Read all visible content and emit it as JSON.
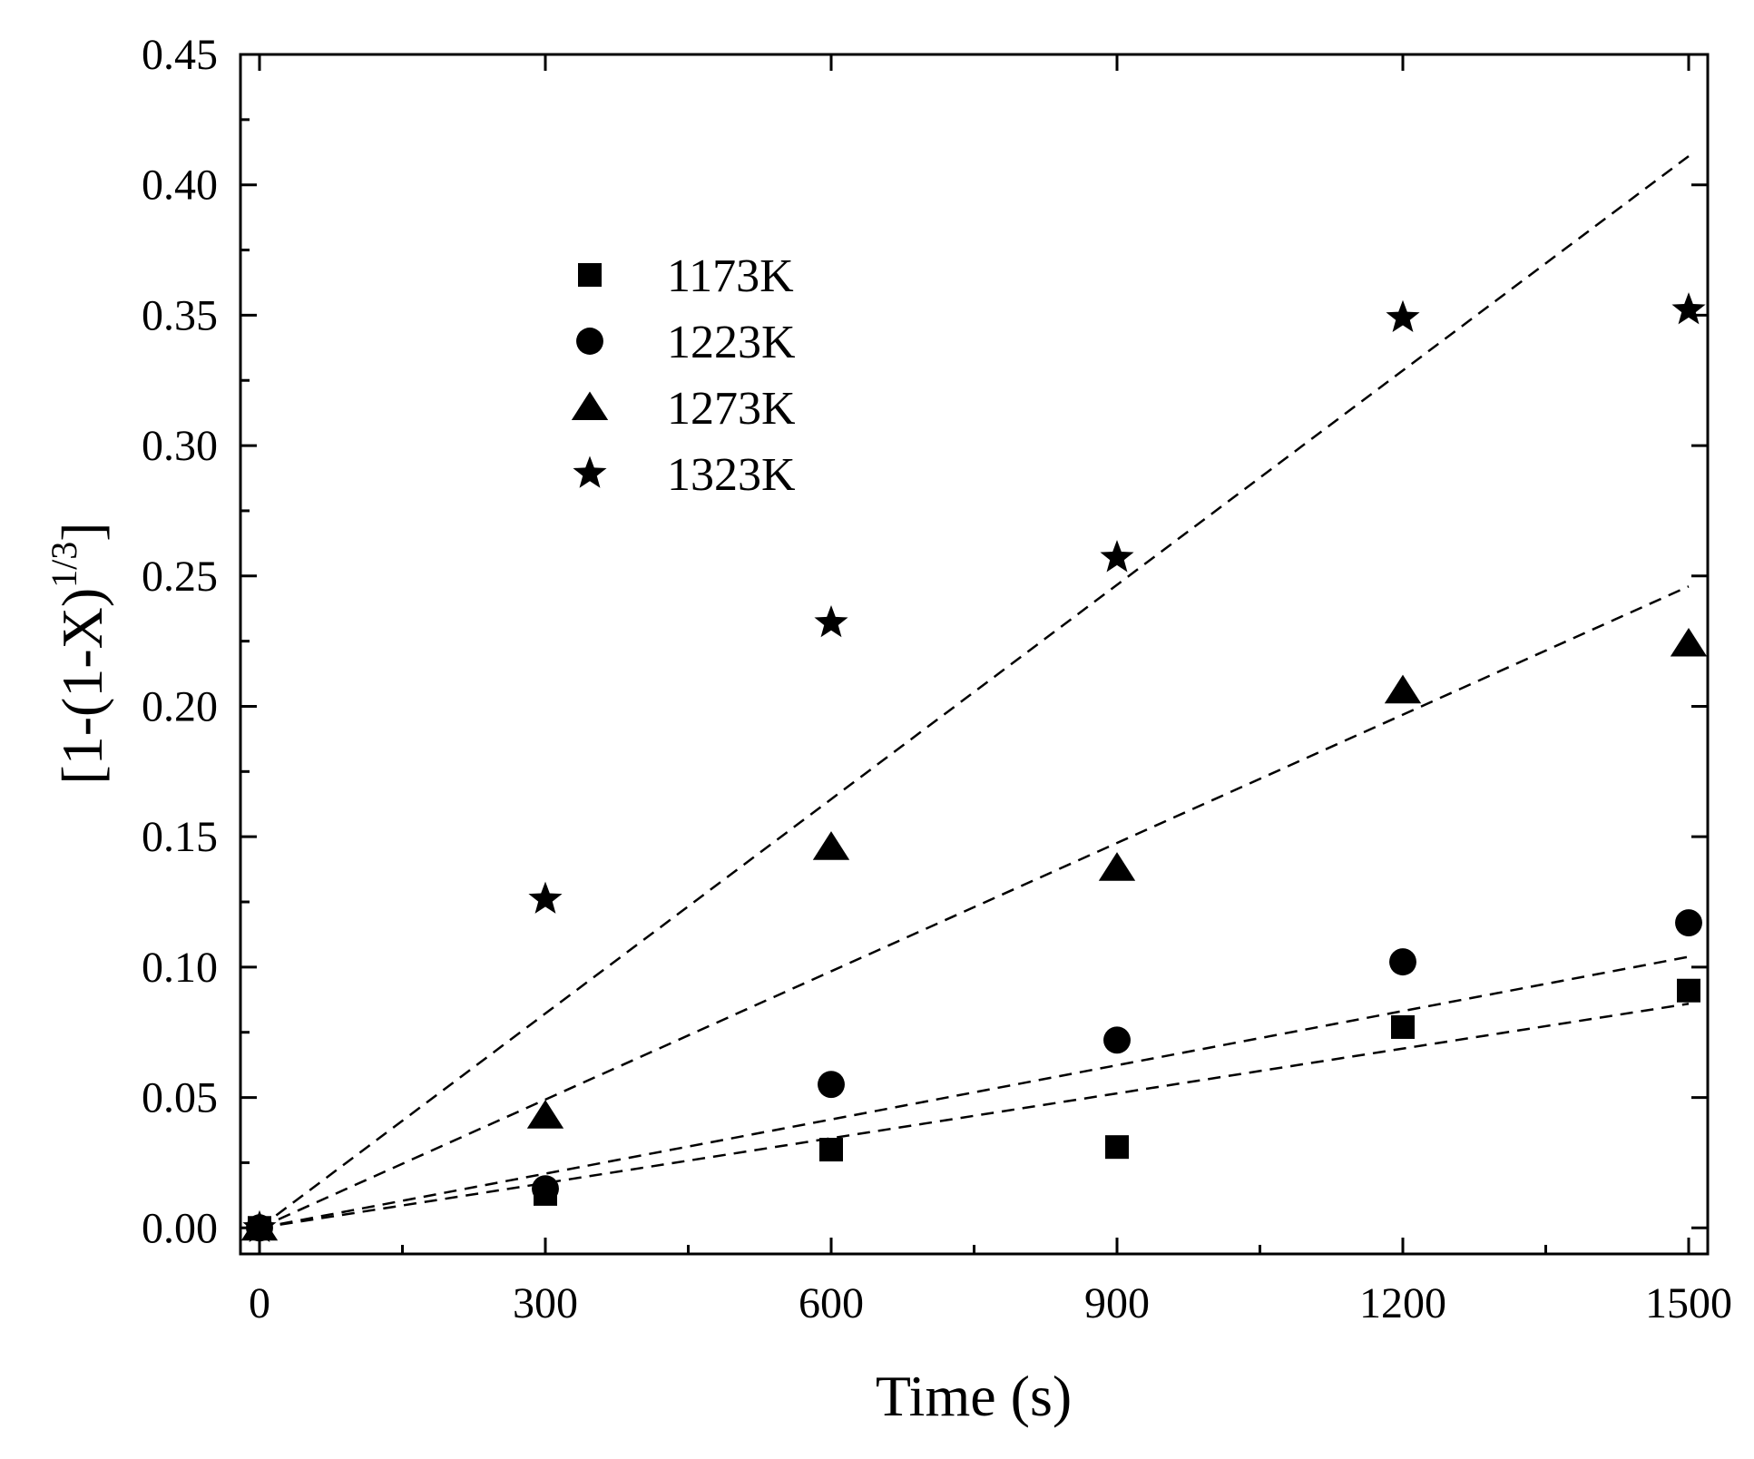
{
  "chart_data": {
    "type": "scatter",
    "title": "",
    "xlabel": "Time (s)",
    "ylabel": {
      "main": "[1-(1-X)",
      "superscript": "1/3",
      "close": "]"
    },
    "xlim": [
      -20,
      1520
    ],
    "ylim": [
      -0.01,
      0.45
    ],
    "x_ticks": [
      0,
      300,
      600,
      900,
      1200,
      1500
    ],
    "x_tick_labels": [
      "0",
      "300",
      "600",
      "900",
      "1200",
      "1500"
    ],
    "y_ticks": [
      0.0,
      0.05,
      0.1,
      0.15,
      0.2,
      0.25,
      0.3,
      0.35,
      0.4,
      0.45
    ],
    "y_tick_labels": [
      "0.00",
      "0.05",
      "0.10",
      "0.15",
      "0.20",
      "0.25",
      "0.30",
      "0.35",
      "0.40",
      "0.45"
    ],
    "legend_position": "upper-left",
    "grid": false,
    "fit_line_style": "dashed",
    "series": [
      {
        "name": "1173K",
        "marker": "square",
        "x": [
          0,
          300,
          600,
          900,
          1200,
          1500
        ],
        "y": [
          0.0,
          0.013,
          0.03,
          0.031,
          0.077,
          0.091
        ],
        "fit_slope": 5.73e-05
      },
      {
        "name": "1223K",
        "marker": "circle",
        "x": [
          0,
          300,
          600,
          900,
          1200,
          1500
        ],
        "y": [
          0.0,
          0.015,
          0.055,
          0.072,
          0.102,
          0.117
        ],
        "fit_slope": 6.93e-05
      },
      {
        "name": "1273K",
        "marker": "triangle",
        "x": [
          0,
          300,
          600,
          900,
          1200,
          1500
        ],
        "y": [
          0.0,
          0.043,
          0.146,
          0.138,
          0.206,
          0.224
        ],
        "fit_slope": 0.000164
      },
      {
        "name": "1323K",
        "marker": "star",
        "x": [
          0,
          300,
          600,
          900,
          1200,
          1500
        ],
        "y": [
          0.0,
          0.126,
          0.232,
          0.257,
          0.349,
          0.352
        ],
        "fit_slope": 0.000274
      }
    ]
  }
}
